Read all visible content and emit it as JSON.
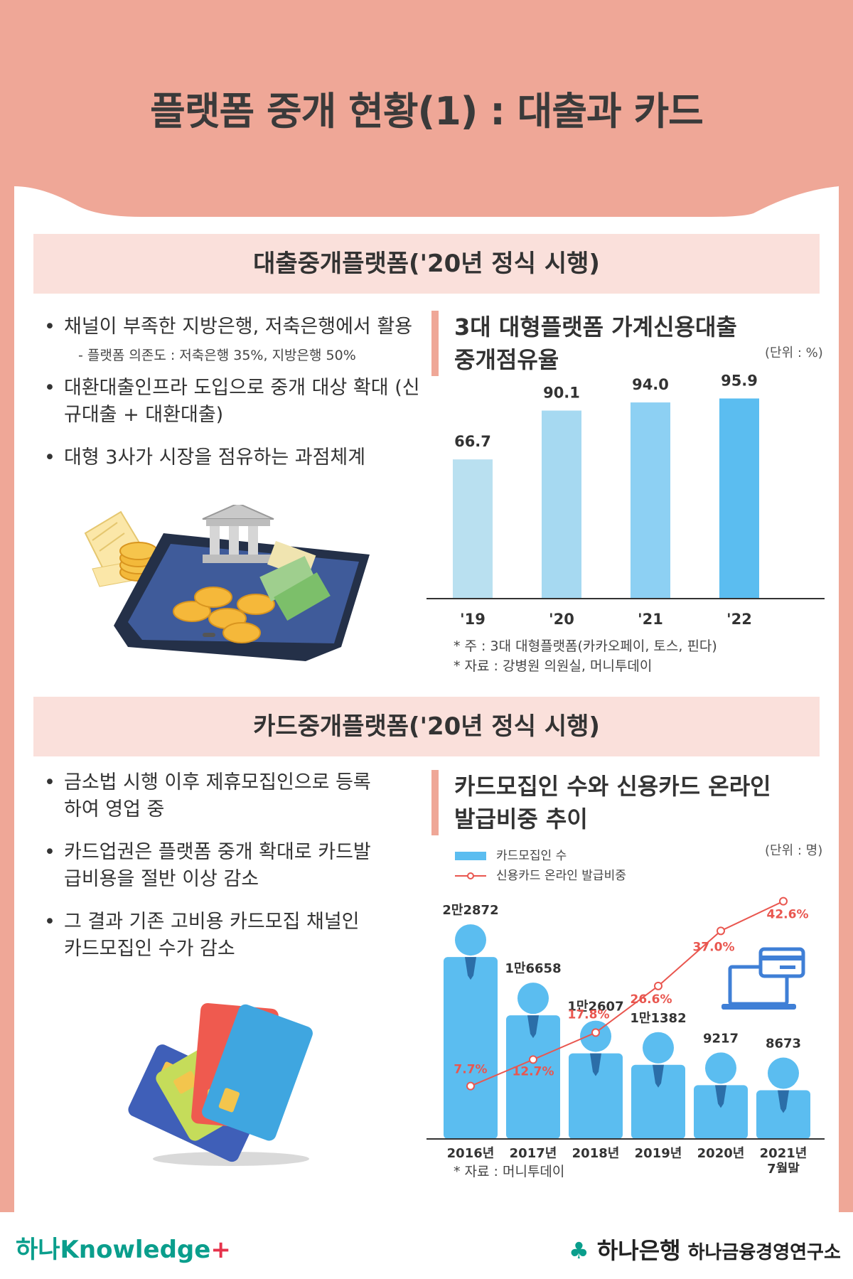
{
  "title": "플랫폼 중개 현황(1) : 대출과 카드",
  "section1": {
    "heading": "대출중개플랫폼('20년 정식 시행)",
    "bullets": [
      "채널이 부족한 지방은행, 저축은행에서 활용",
      "대환대출인프라 도입으로 중개 대상 확대 (신규대출 + 대환대출)",
      "대형 3사가 시장을 점유하는 과점체계"
    ],
    "sub_bullet": "- 플랫폼 의존도 : 저축은행 35%, 지방은행 50%",
    "chart_title_1": "3대 대형플랫폼 가계신용대출",
    "chart_title_2": "중개점유율",
    "unit": "(단위 : %)",
    "notes": [
      "* 주 : 3대 대형플랫폼(카카오페이, 토스, 핀다)",
      "* 자료 : 강병원 의원실, 머니투데이"
    ]
  },
  "section2": {
    "heading": "카드중개플랫폼('20년 정식 시행)",
    "bullets": [
      "금소법 시행 이후 제휴모집인으로 등록하여 영업 중",
      "카드업권은 플랫폼 중개 확대로 카드발급비용을 절반 이상 감소",
      "그 결과 기존 고비용 카드모집 채널인 카드모집인 수가 감소"
    ],
    "chart_title_1": "카드모집인 수와 신용카드 온라인",
    "chart_title_2": "발급비중 추이",
    "unit": "(단위 : 명)",
    "legend": [
      "카드모집인 수",
      "신용카드 온라인 발급비중"
    ],
    "notes": [
      "* 자료 : 머니투데이"
    ]
  },
  "footer": {
    "left_logo": "하나Knowledge",
    "bank": "하나은행",
    "institute": "하나금융경영연구소"
  },
  "colors": {
    "accent": "#efa797",
    "bar_light": "#b9e0f0",
    "bar": "#5bbdf0",
    "line": "#e9564f"
  },
  "chart_data": [
    {
      "type": "bar",
      "title": "3대 대형플랫폼 가계신용대출 중개점유율",
      "categories": [
        "'19",
        "'20",
        "'21",
        "'22"
      ],
      "values": [
        66.7,
        90.1,
        94.0,
        95.9
      ],
      "value_labels": [
        "66.7",
        "90.1",
        "94.0",
        "95.9"
      ],
      "unit": "(단위 : %)",
      "ylim": [
        0,
        100
      ]
    },
    {
      "type": "bar",
      "title": "카드모집인 수와 신용카드 온라인 발급비중 추이",
      "categories": [
        "2016년",
        "2017년",
        "2018년",
        "2019년",
        "2020년",
        "2021년 7월말"
      ],
      "series": [
        {
          "name": "카드모집인 수",
          "type": "bar",
          "values": [
            22872,
            16658,
            12607,
            11382,
            9217,
            8673
          ],
          "labels": [
            "2만2872",
            "1만6658",
            "1만2607",
            "1만1382",
            "9217",
            "8673"
          ]
        },
        {
          "name": "신용카드 온라인 발급비중",
          "type": "line",
          "values": [
            7.7,
            12.7,
            17.8,
            26.6,
            37.0,
            42.6
          ],
          "labels": [
            "7.7%",
            "12.7%",
            "17.8%",
            "26.6%",
            "37.0%",
            "42.6%"
          ]
        }
      ],
      "unit": "(단위 : 명)"
    }
  ]
}
